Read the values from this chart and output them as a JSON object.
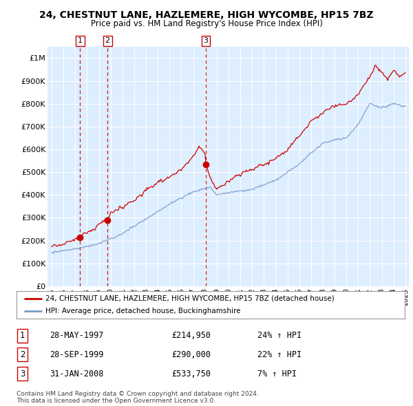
{
  "title": "24, CHESTNUT LANE, HAZLEMERE, HIGH WYCOMBE, HP15 7BZ",
  "subtitle": "Price paid vs. HM Land Registry's House Price Index (HPI)",
  "bg_color": "#ddeeff",
  "red_line_color": "#cc0000",
  "blue_line_color": "#7799cc",
  "sale_color": "#cc0000",
  "dashed_color": "#cc0000",
  "sales": [
    {
      "date_num": 1997.41,
      "price": 214950,
      "label": "1"
    },
    {
      "date_num": 1999.74,
      "price": 290000,
      "label": "2"
    },
    {
      "date_num": 2008.08,
      "price": 533750,
      "label": "3"
    }
  ],
  "legend_line1": "24, CHESTNUT LANE, HAZLEMERE, HIGH WYCOMBE, HP15 7BZ (detached house)",
  "legend_line2": "HPI: Average price, detached house, Buckinghamshire",
  "table_entries": [
    {
      "num": "1",
      "date": "28-MAY-1997",
      "price": "£214,950",
      "hpi": "24% ↑ HPI"
    },
    {
      "num": "2",
      "date": "28-SEP-1999",
      "price": "£290,000",
      "hpi": "22% ↑ HPI"
    },
    {
      "num": "3",
      "date": "31-JAN-2008",
      "price": "£533,750",
      "hpi": "7% ↑ HPI"
    }
  ],
  "footer": "Contains HM Land Registry data © Crown copyright and database right 2024.\nThis data is licensed under the Open Government Licence v3.0.",
  "ylim": [
    0,
    1050000
  ],
  "yticks": [
    0,
    100000,
    200000,
    300000,
    400000,
    500000,
    600000,
    700000,
    800000,
    900000,
    1000000
  ],
  "ytick_labels": [
    "£0",
    "£100K",
    "£200K",
    "£300K",
    "£400K",
    "£500K",
    "£600K",
    "£700K",
    "£800K",
    "£900K",
    "£1M"
  ]
}
